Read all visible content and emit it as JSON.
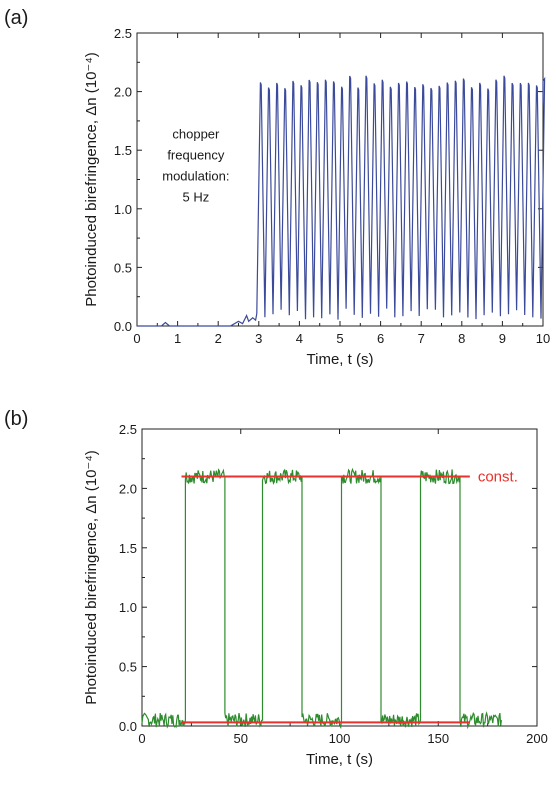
{
  "figure": {
    "panels": [
      {
        "label": "(a)"
      },
      {
        "label": "(b)"
      }
    ]
  },
  "chart_data": [
    {
      "type": "line",
      "panel": "(a)",
      "xlabel": "Time, t (s)",
      "ylabel": "Photoinduced birefringence, Δn (10⁻⁴)",
      "xlim": [
        0,
        10
      ],
      "ylim": [
        0,
        2.5
      ],
      "xticks": [
        0,
        1,
        2,
        3,
        4,
        5,
        6,
        7,
        8,
        9,
        10
      ],
      "yticks": [
        0.0,
        0.5,
        1.0,
        1.5,
        2.0,
        2.5
      ],
      "xtick_labels": [
        "0",
        "1",
        "2",
        "3",
        "4",
        "5",
        "6",
        "7",
        "8",
        "9",
        "10"
      ],
      "ytick_labels": [
        "0.0",
        "0.5",
        "1.0",
        "1.5",
        "2.0",
        "2.5"
      ],
      "grid": false,
      "annotation": [
        "chopper",
        "frequency",
        "modulation:",
        "5 Hz"
      ],
      "series_color": "#3b4a9a",
      "series": [
        {
          "description": "square-ish oscillation at 5 Hz switching on at ~3 s",
          "segments": [
            {
              "x_start": 0.0,
              "x_end": 2.9,
              "y_low": 0.0,
              "y_high": 0.0
            },
            {
              "x_start": 2.9,
              "x_end": 10.0,
              "period_s": 0.2,
              "y_low": 0.05,
              "y_high": 2.1
            }
          ],
          "feature_points": [
            {
              "x": 0.0,
              "y": 0.0
            },
            {
              "x": 0.7,
              "y": 0.03
            },
            {
              "x": 2.5,
              "y": 0.04
            },
            {
              "x": 2.7,
              "y": 0.09
            },
            {
              "x": 2.85,
              "y": 0.07
            },
            {
              "x": 3.0,
              "y": 2.05
            },
            {
              "x": 5.4,
              "y": 2.12
            },
            {
              "x": 7.0,
              "y": 2.17
            },
            {
              "x": 10.0,
              "y": 2.1
            }
          ]
        }
      ]
    },
    {
      "type": "line",
      "panel": "(b)",
      "xlabel": "Time, t (s)",
      "ylabel": "Photoinduced birefringence, Δn (10⁻⁴)",
      "xlim": [
        0,
        200
      ],
      "ylim": [
        0,
        2.5
      ],
      "xticks": [
        0,
        50,
        100,
        150,
        200
      ],
      "yticks": [
        0.0,
        0.5,
        1.0,
        1.5,
        2.0,
        2.5
      ],
      "xtick_labels": [
        "0",
        "50",
        "100",
        "150",
        "200"
      ],
      "ytick_labels": [
        "0.0",
        "0.5",
        "1.0",
        "1.5",
        "2.0",
        "2.5"
      ],
      "grid": false,
      "series_color": "#2e8b2e",
      "const_color": "#e8322b",
      "series": [
        {
          "description": "square wave between ~0.05 and ~2.1",
          "x": [
            0,
            22,
            22,
            42,
            42,
            61,
            61,
            81,
            81,
            101,
            101,
            121,
            121,
            141,
            141,
            161,
            161,
            182
          ],
          "y": [
            0.05,
            0.05,
            2.1,
            2.1,
            0.05,
            0.05,
            2.1,
            2.1,
            0.05,
            0.05,
            2.1,
            2.1,
            0.05,
            0.05,
            2.1,
            2.1,
            0.05,
            0.05
          ]
        }
      ],
      "reference_lines": [
        {
          "label": "const.",
          "y": 2.1,
          "x": [
            20,
            166
          ]
        },
        {
          "label": "",
          "y": 0.03,
          "x": [
            20,
            166
          ]
        }
      ]
    }
  ]
}
